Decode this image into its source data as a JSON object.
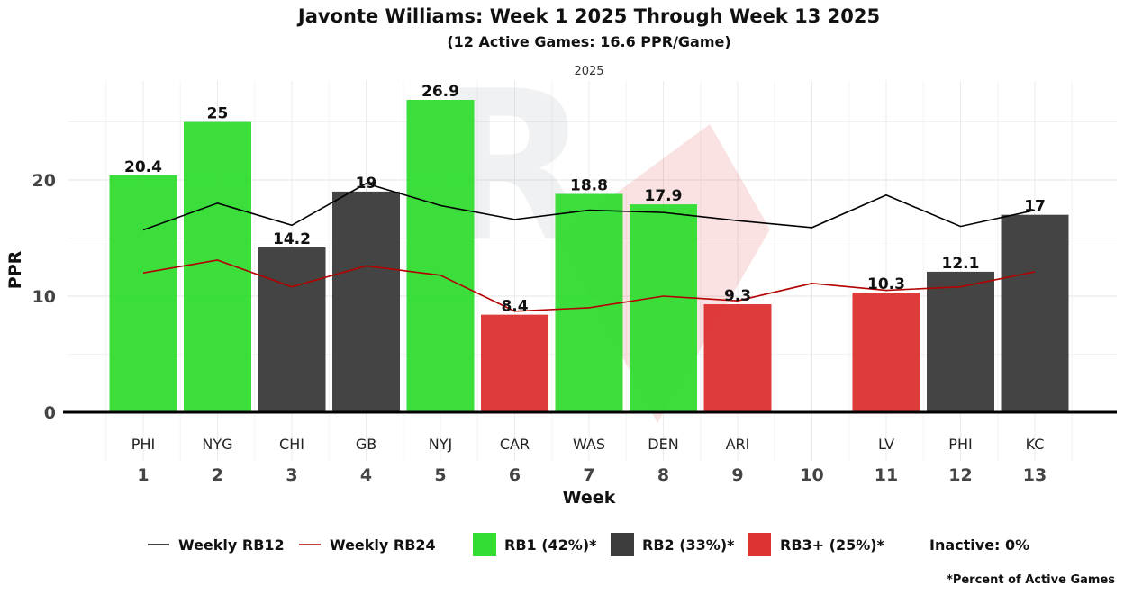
{
  "chart_data": {
    "type": "bar",
    "title": "Javonte Williams: Week 1 2025 Through Week 13 2025",
    "subtitle": "(12 Active Games: 16.6 PPR/Game)",
    "facet_label": "2025",
    "xlabel": "Week",
    "ylabel": "PPR",
    "ylim": [
      0,
      28.5
    ],
    "yticks": [
      0,
      10,
      20
    ],
    "weeks": [
      1,
      2,
      3,
      4,
      5,
      6,
      7,
      8,
      9,
      10,
      11,
      12,
      13
    ],
    "opponents": [
      "PHI",
      "NYG",
      "CHI",
      "GB",
      "NYJ",
      "CAR",
      "WAS",
      "DEN",
      "ARI",
      "",
      "LV",
      "PHI",
      "KC"
    ],
    "values": [
      20.4,
      25,
      14.2,
      19,
      26.9,
      8.4,
      18.8,
      17.9,
      9.3,
      null,
      10.3,
      12.1,
      17
    ],
    "value_labels": [
      "20.4",
      "25",
      "14.2",
      "19",
      "26.9",
      "8.4",
      "18.8",
      "17.9",
      "9.3",
      "",
      "10.3",
      "12.1",
      "17"
    ],
    "tiers": [
      "RB1",
      "RB1",
      "RB2",
      "RB2",
      "RB1",
      "RB3",
      "RB1",
      "RB1",
      "RB3",
      "",
      "RB3",
      "RB2",
      "RB2"
    ],
    "series": [
      {
        "name": "Weekly RB12",
        "color": "#000000",
        "values": [
          15.7,
          18.0,
          16.1,
          19.7,
          17.8,
          16.6,
          17.4,
          17.2,
          16.5,
          15.9,
          18.7,
          16.0,
          17.4
        ]
      },
      {
        "name": "Weekly RB24",
        "color": "#b30000",
        "values": [
          12.0,
          13.1,
          10.8,
          12.6,
          11.8,
          8.7,
          9.0,
          10.0,
          9.6,
          11.1,
          10.5,
          10.8,
          12.1
        ]
      }
    ],
    "tier_colors": {
      "RB1": "#33dd33",
      "RB2": "#3c3c3c",
      "RB3": "#dd3333"
    },
    "legend": {
      "line_items": [
        "Weekly RB12",
        "Weekly RB24"
      ],
      "box_items": [
        {
          "label": "RB1 (42%)*",
          "tier": "RB1"
        },
        {
          "label": "RB2 (33%)*",
          "tier": "RB2"
        },
        {
          "label": "RB3+ (25%)*",
          "tier": "RB3"
        }
      ],
      "inactive": "Inactive: 0%",
      "placement": "bottom"
    },
    "footnote": "*Percent of Active Games"
  }
}
